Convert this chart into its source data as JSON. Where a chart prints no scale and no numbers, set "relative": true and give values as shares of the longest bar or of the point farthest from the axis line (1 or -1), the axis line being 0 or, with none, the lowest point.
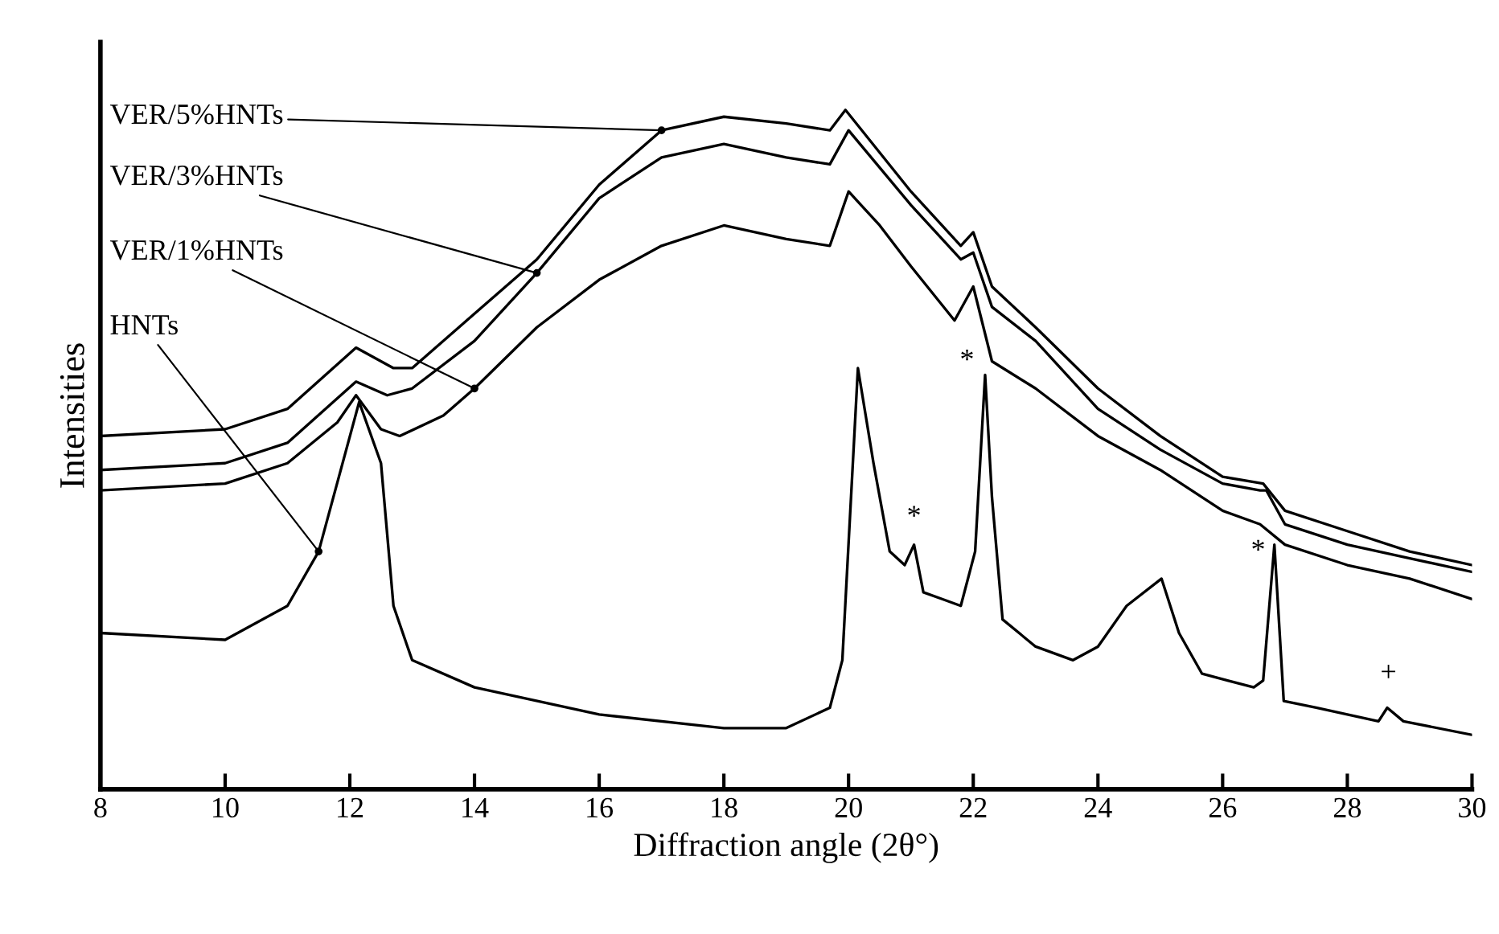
{
  "chart_data": {
    "type": "line",
    "relative": true,
    "xlabel": "Diffraction angle (2θ°)",
    "ylabel": "Intensities",
    "xlim": [
      8,
      30
    ],
    "xticks": [
      8,
      10,
      12,
      14,
      16,
      18,
      20,
      22,
      24,
      26,
      28,
      30
    ],
    "grid": false,
    "legend": false,
    "marker": "none",
    "line_style": "solid",
    "series": [
      {
        "name": "VER/5%HNTs",
        "color": "#000000",
        "x": [
          8,
          10,
          11,
          12.1,
          12.7,
          13,
          14,
          15,
          16,
          17,
          18,
          19,
          19.7,
          19.95,
          21,
          21.8,
          22,
          22.3,
          23,
          24,
          25,
          26,
          26.65,
          27,
          28,
          29,
          30
        ],
        "values": [
          0.52,
          0.53,
          0.56,
          0.65,
          0.62,
          0.62,
          0.7,
          0.78,
          0.89,
          0.97,
          0.99,
          0.98,
          0.97,
          1.0,
          0.88,
          0.8,
          0.82,
          0.74,
          0.68,
          0.59,
          0.52,
          0.46,
          0.45,
          0.41,
          0.38,
          0.35,
          0.33
        ]
      },
      {
        "name": "VER/3%HNTs",
        "color": "#000000",
        "x": [
          8,
          10,
          11,
          12.1,
          12.6,
          13,
          14,
          15,
          16,
          17,
          18,
          19,
          19.7,
          20,
          21,
          21.8,
          22,
          22.3,
          23,
          24,
          25,
          26,
          26.6,
          26.7,
          27,
          28,
          29,
          30
        ],
        "values": [
          0.47,
          0.48,
          0.51,
          0.6,
          0.58,
          0.59,
          0.66,
          0.76,
          0.87,
          0.93,
          0.95,
          0.93,
          0.92,
          0.97,
          0.86,
          0.78,
          0.79,
          0.71,
          0.66,
          0.56,
          0.5,
          0.45,
          0.44,
          0.44,
          0.39,
          0.36,
          0.34,
          0.32
        ]
      },
      {
        "name": "VER/1%HNTs",
        "color": "#000000",
        "x": [
          8,
          10,
          11,
          11.8,
          12.1,
          12.5,
          12.8,
          13.5,
          14,
          15,
          16,
          17,
          18,
          19,
          19.7,
          20,
          20.5,
          21,
          21.7,
          22,
          22.3,
          23,
          24,
          25,
          26,
          26.6,
          27,
          28,
          29,
          30
        ],
        "values": [
          0.44,
          0.45,
          0.48,
          0.54,
          0.58,
          0.53,
          0.52,
          0.55,
          0.59,
          0.68,
          0.75,
          0.8,
          0.83,
          0.81,
          0.8,
          0.88,
          0.83,
          0.77,
          0.69,
          0.74,
          0.63,
          0.59,
          0.52,
          0.47,
          0.41,
          0.39,
          0.36,
          0.33,
          0.31,
          0.28
        ]
      },
      {
        "name": "HNTs",
        "color": "#000000",
        "x": [
          8,
          10,
          11,
          11.5,
          12.15,
          12.5,
          12.7,
          13,
          14,
          16,
          18,
          19,
          19.7,
          19.9,
          20.15,
          20.4,
          20.66,
          20.9,
          21.05,
          21.2,
          21.5,
          21.8,
          22.03,
          22.19,
          22.3,
          22.47,
          23,
          23.6,
          24,
          24.46,
          25.02,
          25.3,
          25.67,
          26.5,
          26.65,
          26.83,
          26.98,
          27.5,
          28.5,
          28.64,
          28.9,
          30
        ],
        "values": [
          0.23,
          0.22,
          0.27,
          0.35,
          0.57,
          0.48,
          0.27,
          0.19,
          0.15,
          0.11,
          0.09,
          0.09,
          0.12,
          0.19,
          0.62,
          0.48,
          0.35,
          0.33,
          0.36,
          0.29,
          0.28,
          0.27,
          0.35,
          0.61,
          0.43,
          0.25,
          0.21,
          0.19,
          0.21,
          0.27,
          0.31,
          0.23,
          0.17,
          0.15,
          0.16,
          0.36,
          0.13,
          0.12,
          0.1,
          0.12,
          0.1,
          0.08
        ]
      }
    ],
    "annotations": [
      "*",
      "*",
      "*",
      "+"
    ]
  }
}
